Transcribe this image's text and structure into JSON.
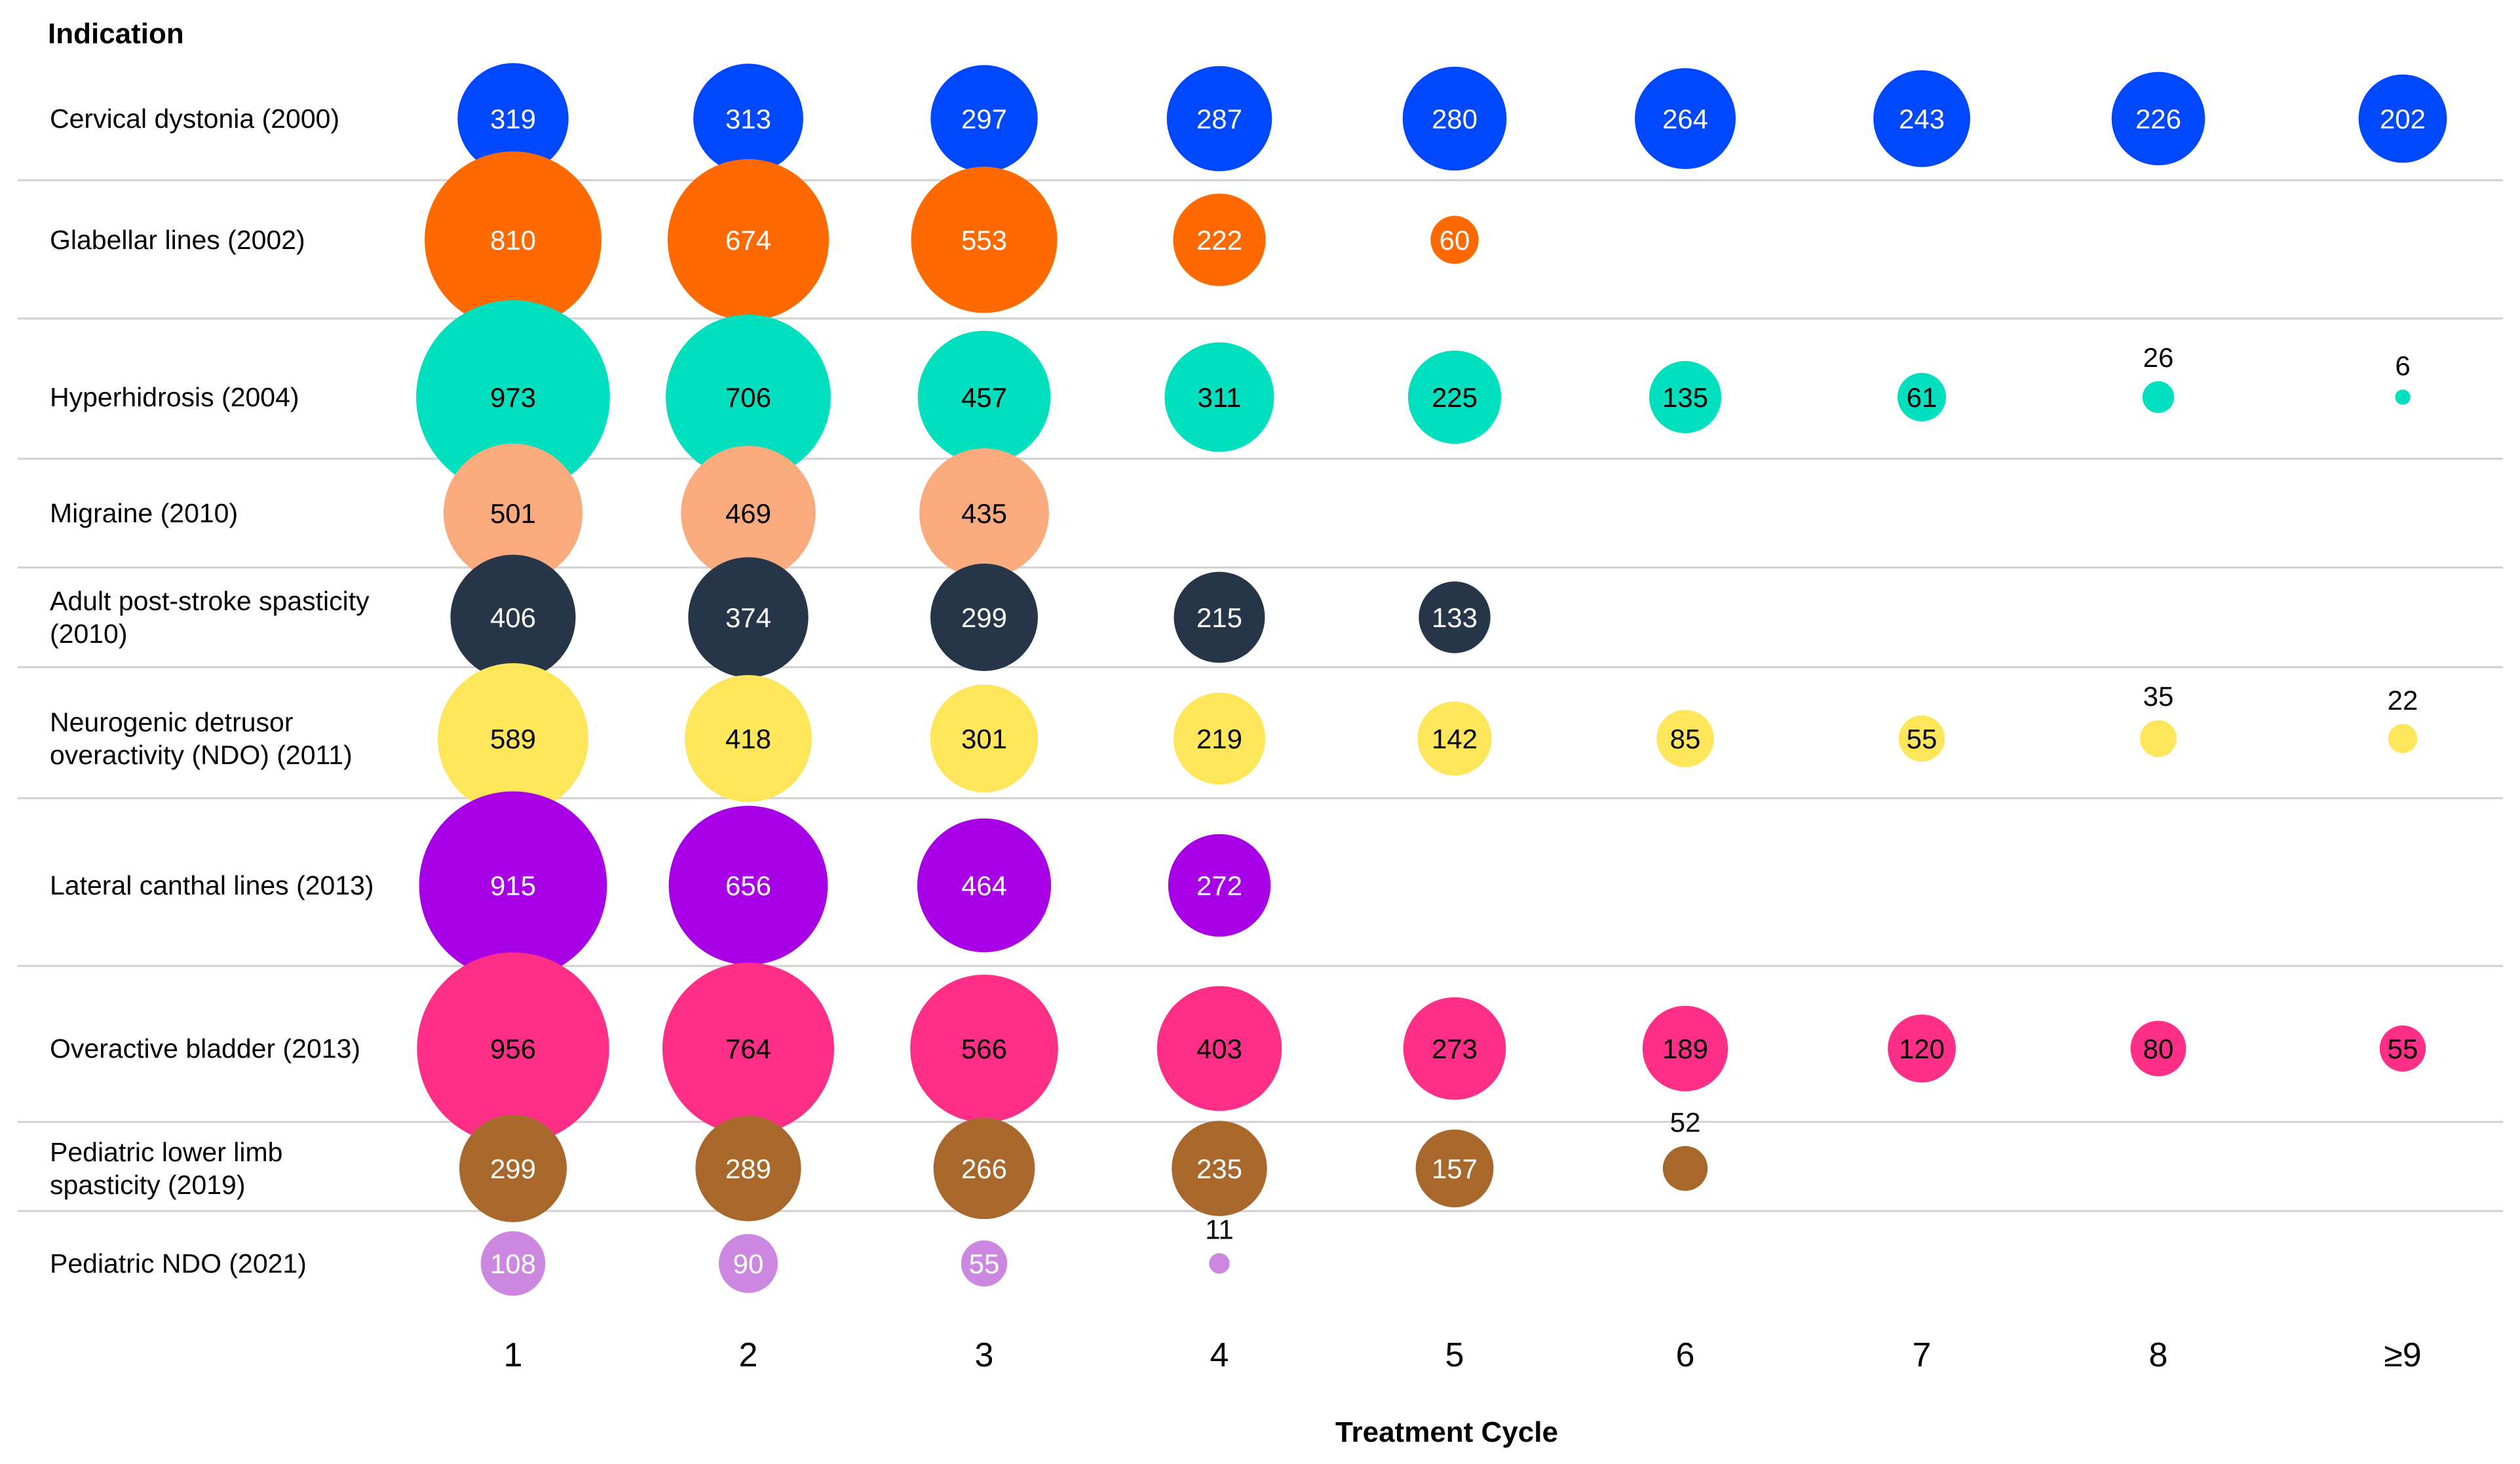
{
  "chart_data": {
    "type": "bubble",
    "title": "",
    "row_header": "Indication",
    "xlabel": "Treatment Cycle",
    "categories": [
      "1",
      "2",
      "3",
      "4",
      "5",
      "6",
      "7",
      "8",
      "≥9"
    ],
    "series": [
      {
        "name": "Cervical dystonia (2000)",
        "label_lines": [
          "Cervical dystonia (2000)"
        ],
        "color": "#0048FF",
        "text_color": "#FFFFFF",
        "values": [
          319,
          313,
          297,
          287,
          280,
          264,
          243,
          226,
          202
        ]
      },
      {
        "name": "Glabellar lines (2002)",
        "label_lines": [
          "Glabellar lines (2002)"
        ],
        "color": "#FF6A00",
        "text_color": "#FFFFFF",
        "values": [
          810,
          674,
          553,
          222,
          60,
          null,
          null,
          null,
          null
        ]
      },
      {
        "name": "Hyperhidrosis (2004)",
        "label_lines": [
          "Hyperhidrosis (2004)"
        ],
        "color": "#00E0BE",
        "text_color": "#000000",
        "values": [
          973,
          706,
          457,
          311,
          225,
          135,
          61,
          26,
          6
        ]
      },
      {
        "name": "Migraine (2010)",
        "label_lines": [
          "Migraine (2010)"
        ],
        "color": "#FAAB7E",
        "text_color": "#000000",
        "values": [
          501,
          469,
          435,
          null,
          null,
          null,
          null,
          null,
          null
        ]
      },
      {
        "name": "Adult post-stroke spasticity (2010)",
        "label_lines": [
          "Adult post-stroke spasticity",
          "(2010)"
        ],
        "color": "#263648",
        "text_color": "#FFFFFF",
        "values": [
          406,
          374,
          299,
          215,
          133,
          null,
          null,
          null,
          null
        ]
      },
      {
        "name": "Neurogenic detrusor overactivity (NDO) (2011)",
        "label_lines": [
          "Neurogenic detrusor",
          "overactivity (NDO) (2011)"
        ],
        "color": "#FEE65A",
        "text_color": "#000000",
        "values": [
          589,
          418,
          301,
          219,
          142,
          85,
          55,
          35,
          22
        ]
      },
      {
        "name": "Lateral canthal lines (2013)",
        "label_lines": [
          "Lateral canthal lines (2013)"
        ],
        "color": "#A800E6",
        "text_color": "#FFFFFF",
        "values": [
          915,
          656,
          464,
          272,
          null,
          null,
          null,
          null,
          null
        ]
      },
      {
        "name": "Overactive bladder (2013)",
        "label_lines": [
          "Overactive bladder (2013)"
        ],
        "color": "#FF2E86",
        "text_color": "#000000",
        "values": [
          956,
          764,
          566,
          403,
          273,
          189,
          120,
          80,
          55
        ]
      },
      {
        "name": "Pediatric lower limb spasticity (2019)",
        "label_lines": [
          "Pediatric lower limb",
          "spasticity (2019)"
        ],
        "color": "#A8672B",
        "text_color": "#FFFFFF",
        "values": [
          299,
          289,
          266,
          235,
          157,
          52,
          null,
          null,
          null
        ]
      },
      {
        "name": "Pediatric NDO (2021)",
        "label_lines": [
          "Pediatric NDO (2021)"
        ],
        "color": "#CC88E0",
        "text_color": "#FFFFFF",
        "values": [
          108,
          90,
          55,
          11,
          null,
          null,
          null,
          null,
          null
        ]
      }
    ]
  }
}
